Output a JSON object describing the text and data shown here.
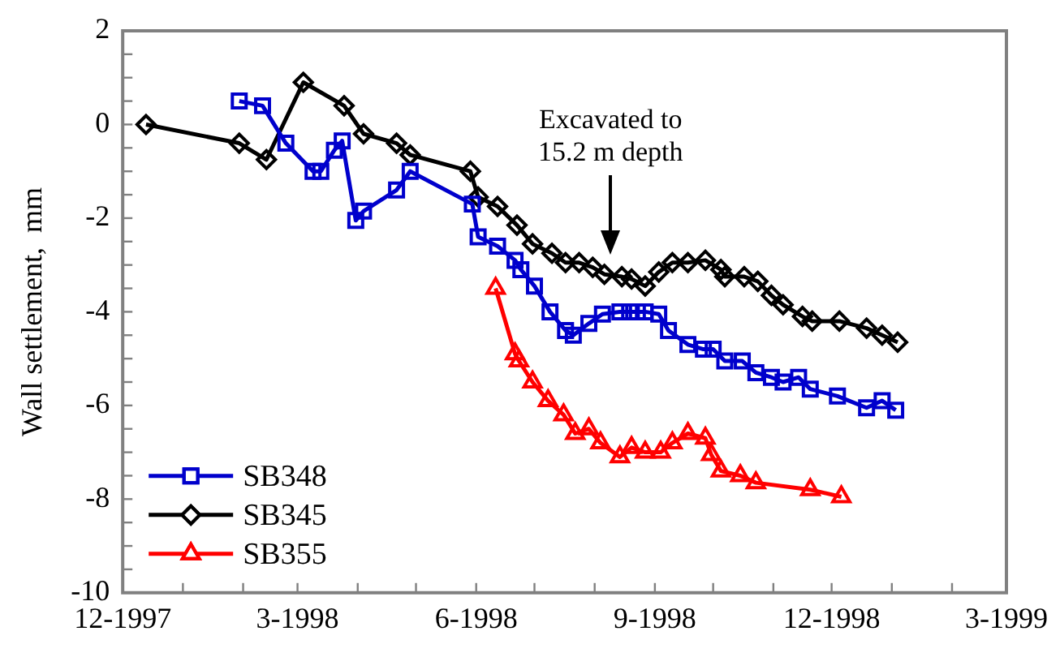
{
  "chart_data": {
    "type": "line",
    "ylabel": "Wall settlement,  mm",
    "xlim": [
      "1997-12-01",
      "1999-03-01"
    ],
    "xticks": [
      {
        "value": "1997-12-01",
        "label": "12-1997"
      },
      {
        "value": "1998-01-01",
        "label": null
      },
      {
        "value": "1998-02-01",
        "label": null
      },
      {
        "value": "1998-03-01",
        "label": "3-1998"
      },
      {
        "value": "1998-04-01",
        "label": null
      },
      {
        "value": "1998-05-01",
        "label": null
      },
      {
        "value": "1998-06-01",
        "label": "6-1998"
      },
      {
        "value": "1998-07-01",
        "label": null
      },
      {
        "value": "1998-08-01",
        "label": null
      },
      {
        "value": "1998-09-01",
        "label": "9-1998"
      },
      {
        "value": "1998-10-01",
        "label": null
      },
      {
        "value": "1998-11-01",
        "label": null
      },
      {
        "value": "1998-12-01",
        "label": "12-1998"
      },
      {
        "value": "1999-01-01",
        "label": null
      },
      {
        "value": "1999-02-01",
        "label": null
      },
      {
        "value": "1999-03-01",
        "label": "3-1999"
      }
    ],
    "ylim": [
      -10,
      2
    ],
    "yticks": [
      -10,
      {
        "value": -9.5,
        "label": null
      },
      {
        "value": -9,
        "label": null
      },
      {
        "value": -8.5,
        "label": null
      },
      -8,
      {
        "value": -7.5,
        "label": null
      },
      {
        "value": -7,
        "label": null
      },
      {
        "value": -6.5,
        "label": null
      },
      -6,
      {
        "value": -5.5,
        "label": null
      },
      {
        "value": -5,
        "label": null
      },
      {
        "value": -4.5,
        "label": null
      },
      -4,
      {
        "value": -3.5,
        "label": null
      },
      {
        "value": -3,
        "label": null
      },
      {
        "value": -2.5,
        "label": null
      },
      -2,
      {
        "value": -1.5,
        "label": null
      },
      {
        "value": -1,
        "label": null
      },
      {
        "value": -0.5,
        "label": null
      },
      0,
      {
        "value": 0.5,
        "label": null
      },
      {
        "value": 1,
        "label": null
      },
      {
        "value": 1.5,
        "label": null
      },
      2
    ],
    "grid": false,
    "legend": "bottom left",
    "line_style": "solid",
    "annotations": [
      "Excavated to\n15.2 m depth"
    ],
    "series": [
      {
        "name": "SB348",
        "color": "#0000cc",
        "marker": "square",
        "x": [
          "1998-01-30",
          "1998-02-11",
          "1998-02-23",
          "1998-03-09",
          "1998-03-13",
          "1998-03-20",
          "1998-03-24",
          "1998-03-31",
          "1998-04-04",
          "1998-04-21",
          "1998-04-28",
          "1998-05-30",
          "1998-06-02",
          "1998-06-12",
          "1998-06-21",
          "1998-06-24",
          "1998-07-01",
          "1998-07-09",
          "1998-07-17",
          "1998-07-21",
          "1998-07-29",
          "1998-08-05",
          "1998-08-14",
          "1998-08-19",
          "1998-08-23",
          "1998-08-27",
          "1998-09-03",
          "1998-09-08",
          "1998-09-18",
          "1998-09-26",
          "1998-10-01",
          "1998-10-07",
          "1998-10-16",
          "1998-10-23",
          "1998-10-31",
          "1998-11-06",
          "1998-11-14",
          "1998-11-20",
          "1998-12-04",
          "1998-12-19",
          "1998-12-27",
          "1999-01-03"
        ],
        "values": [
          0.5,
          0.4,
          -0.4,
          -1.0,
          -1.0,
          -0.55,
          -0.35,
          -2.05,
          -1.85,
          -1.4,
          -1.0,
          -1.7,
          -2.4,
          -2.6,
          -2.9,
          -3.1,
          -3.45,
          -4.0,
          -4.4,
          -4.5,
          -4.25,
          -4.05,
          -4.0,
          -4.0,
          -4.0,
          -4.0,
          -4.05,
          -4.4,
          -4.7,
          -4.8,
          -4.8,
          -5.05,
          -5.05,
          -5.3,
          -5.4,
          -5.5,
          -5.4,
          -5.65,
          -5.8,
          -6.05,
          -5.9,
          -6.1
        ]
      },
      {
        "name": "SB345",
        "color": "#000000",
        "marker": "diamond",
        "x": [
          "1997-12-13",
          "1998-01-30",
          "1998-02-13",
          "1998-03-04",
          "1998-03-25",
          "1998-04-04",
          "1998-04-21",
          "1998-04-28",
          "1998-05-29",
          "1998-06-02",
          "1998-06-12",
          "1998-06-22",
          "1998-06-30",
          "1998-07-10",
          "1998-07-17",
          "1998-07-24",
          "1998-07-31",
          "1998-08-06",
          "1998-08-15",
          "1998-08-20",
          "1998-08-27",
          "1998-09-03",
          "1998-09-10",
          "1998-09-18",
          "1998-09-27",
          "1998-10-05",
          "1998-10-07",
          "1998-10-17",
          "1998-10-24",
          "1998-10-31",
          "1998-11-06",
          "1998-11-16",
          "1998-11-21",
          "1998-12-05",
          "1998-12-19",
          "1998-12-27",
          "1999-01-04"
        ],
        "values": [
          0.0,
          -0.4,
          -0.75,
          0.9,
          0.4,
          -0.2,
          -0.4,
          -0.65,
          -1.0,
          -1.55,
          -1.75,
          -2.15,
          -2.55,
          -2.75,
          -2.95,
          -2.95,
          -3.05,
          -3.2,
          -3.25,
          -3.3,
          -3.45,
          -3.15,
          -2.95,
          -2.95,
          -2.9,
          -3.1,
          -3.25,
          -3.25,
          -3.35,
          -3.65,
          -3.85,
          -4.1,
          -4.2,
          -4.2,
          -4.35,
          -4.5,
          -4.65
        ]
      },
      {
        "name": "SB355",
        "color": "#ff0000",
        "marker": "triangle",
        "x": [
          "1998-06-11",
          "1998-06-21",
          "1998-06-23",
          "1998-06-30",
          "1998-07-08",
          "1998-07-16",
          "1998-07-22",
          "1998-07-29",
          "1998-08-04",
          "1998-08-14",
          "1998-08-20",
          "1998-08-27",
          "1998-09-04",
          "1998-09-10",
          "1998-09-18",
          "1998-09-27",
          "1998-09-30",
          "1998-10-05",
          "1998-10-15",
          "1998-10-23",
          "1998-11-20",
          "1998-12-06"
        ],
        "values": [
          -3.5,
          -4.9,
          -5.05,
          -5.5,
          -5.9,
          -6.2,
          -6.6,
          -6.5,
          -6.8,
          -7.1,
          -6.9,
          -7.0,
          -7.0,
          -6.8,
          -6.6,
          -6.7,
          -7.05,
          -7.4,
          -7.5,
          -7.65,
          -7.8,
          -7.95
        ]
      }
    ]
  }
}
